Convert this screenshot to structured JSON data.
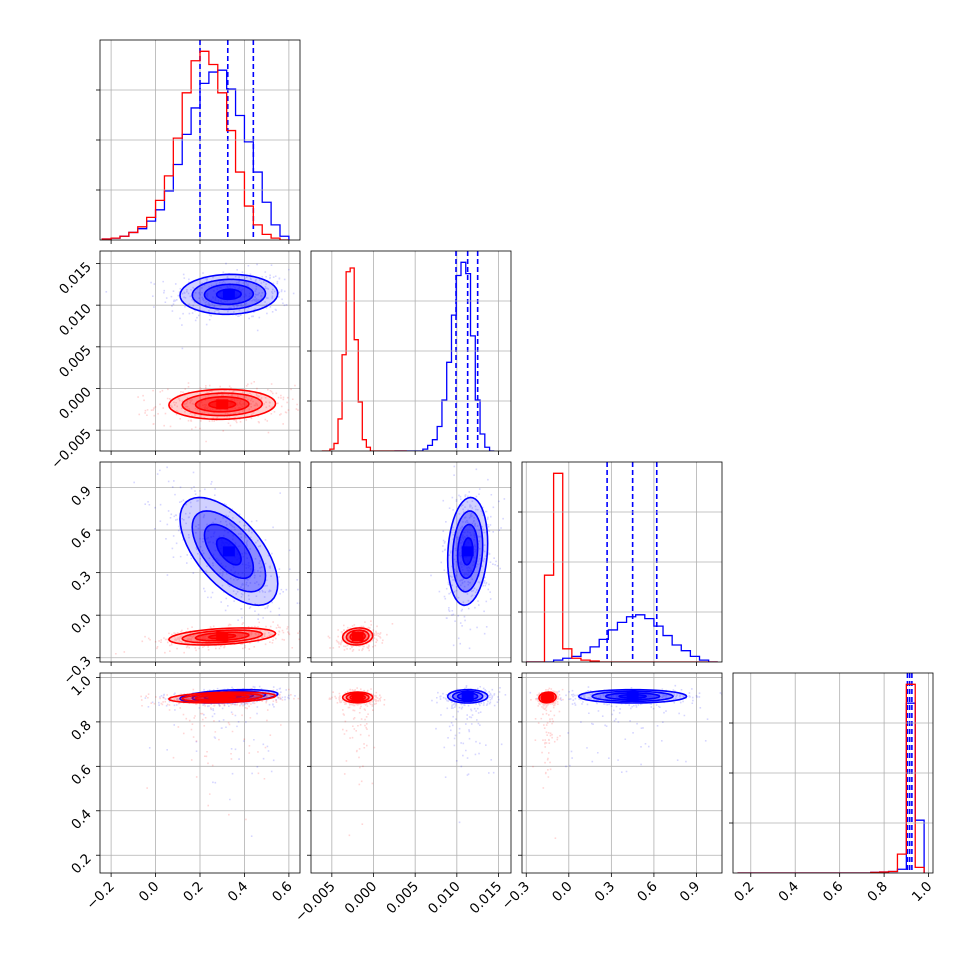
{
  "colors": {
    "blue": "#0000ff",
    "red": "#ff0000",
    "grid": "#b0b0b0"
  },
  "chart_data": {
    "type": "corner",
    "title": "",
    "grid": true,
    "legend": "none",
    "parameters": [
      {
        "id": "p0",
        "range": [
          -0.25,
          0.65
        ],
        "ticks": [
          -0.2,
          0.0,
          0.2,
          0.4,
          0.6
        ],
        "tick_labels": [
          "−0.2",
          "0.0",
          "0.2",
          "0.4",
          "0.6"
        ]
      },
      {
        "id": "p1",
        "range": [
          -0.0075,
          0.0165
        ],
        "ticks": [
          -0.005,
          0.0,
          0.005,
          0.01,
          0.015
        ],
        "tick_labels": [
          "−0.005",
          "0.000",
          "0.005",
          "0.010",
          "0.015"
        ]
      },
      {
        "id": "p2",
        "range": [
          -0.33,
          1.08
        ],
        "ticks": [
          -0.3,
          0.0,
          0.3,
          0.6,
          0.9
        ],
        "tick_labels": [
          "−0.3",
          "0.0",
          "0.3",
          "0.6",
          "0.9"
        ]
      },
      {
        "id": "p3",
        "range": [
          0.12,
          1.02
        ],
        "ticks": [
          0.2,
          0.4,
          0.6,
          0.8,
          1.0
        ],
        "tick_labels": [
          "0.2",
          "0.4",
          "0.6",
          "0.8",
          "1.0"
        ]
      }
    ],
    "series": [
      {
        "color": "#0000ff",
        "quantiles": [
          [
            0.2,
            0.325,
            0.44
          ],
          [
            0.0099,
            0.0113,
            0.0125
          ],
          [
            0.27,
            0.45,
            0.62
          ],
          [
            0.905,
            0.915,
            0.925
          ]
        ],
        "histograms": [
          {
            "edges": [
              -0.24,
              0.6
            ],
            "counts": [
              0.5,
              1,
              2,
              4,
              6,
              10,
              16,
              26,
              40,
              56,
              70,
              83,
              89,
              90,
              80,
              66,
              52,
              36,
              20,
              8,
              2
            ]
          },
          {
            "edges": [
              0.0025,
              0.0145
            ],
            "counts": [
              0,
              0,
              0,
              0,
              0,
              0,
              1,
              3,
              6,
              13,
              27,
              47,
              72,
              93,
              100,
              94,
              61,
              27,
              9,
              2,
              0
            ]
          },
          {
            "edges": [
              -0.3,
              1.05
            ],
            "counts": [
              0,
              0,
              0,
              1,
              2,
              3,
              5,
              8,
              12,
              17,
              21,
              24,
              25,
              23,
              19,
              14,
              9,
              6,
              3,
              1,
              0
            ]
          },
          {
            "edges": [
              0.14,
              0.98
            ],
            "counts": [
              0,
              0,
              0,
              0,
              0,
              0,
              0,
              0,
              0,
              0,
              0,
              0,
              0,
              0,
              0,
              0.3,
              0.5,
              0.8,
              2,
              90,
              28
            ]
          }
        ],
        "centers": [
          0.33,
          0.0113,
          0.45,
          0.915
        ],
        "sigmas": [
          0.11,
          0.0012,
          0.19,
          0.015
        ]
      },
      {
        "color": "#ff0000",
        "histograms": [
          {
            "edges": [
              -0.24,
              0.6
            ],
            "counts": [
              0.5,
              1,
              2,
              4,
              7,
              12,
              21,
              34,
              54,
              78,
              95,
              100,
              93,
              78,
              58,
              36,
              18,
              8,
              3,
              1,
              0
            ]
          },
          {
            "edges": [
              -0.0062,
              0.004
            ],
            "counts": [
              0,
              0,
              1,
              4,
              17,
              51,
              95,
              97,
              59,
              26,
              6,
              2,
              0,
              0,
              0,
              0,
              0,
              0,
              0,
              0,
              0
            ]
          },
          {
            "edges": [
              -0.3,
              1.05
            ],
            "counts": [
              0,
              0,
              46,
              100,
              7,
              2,
              1,
              0.5,
              0,
              0,
              0,
              0,
              0,
              0,
              0,
              0,
              0,
              0,
              0,
              0,
              0
            ]
          },
          {
            "edges": [
              0.14,
              0.98
            ],
            "counts": [
              0,
              0,
              0,
              0,
              0,
              0,
              0,
              0,
              0,
              0,
              0,
              0,
              0,
              0,
              0,
              0.3,
              0.5,
              0.8,
              10,
              100,
              3
            ]
          }
        ],
        "centers": [
          0.3,
          -0.0019,
          -0.15,
          0.91
        ],
        "sigmas": [
          0.12,
          0.0009,
          0.03,
          0.012
        ]
      }
    ]
  }
}
